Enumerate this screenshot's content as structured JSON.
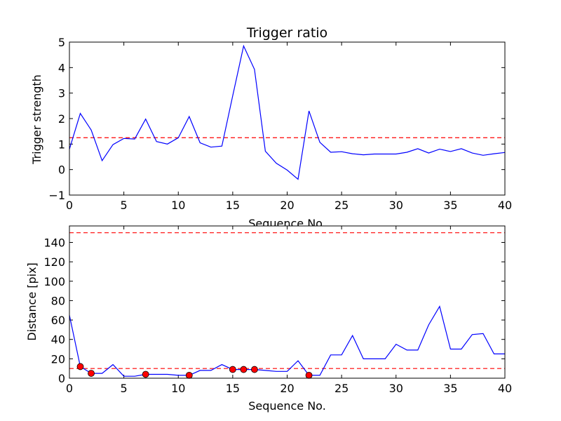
{
  "chart_data": [
    {
      "type": "line",
      "title": "Trigger ratio",
      "xlabel": "Sequence No.",
      "ylabel": "Trigger strength",
      "xlim": [
        0,
        40
      ],
      "ylim": [
        -1,
        5
      ],
      "xticks": [
        0,
        5,
        10,
        15,
        20,
        25,
        30,
        35,
        40
      ],
      "yticks": [
        -1,
        0,
        1,
        2,
        3,
        4,
        5
      ],
      "grid": false,
      "series": [
        {
          "color": "#0000ff",
          "x": [
            0,
            1,
            2,
            3,
            4,
            5,
            6,
            7,
            8,
            9,
            10,
            11,
            12,
            13,
            14,
            15,
            16,
            17,
            18,
            19,
            20,
            21,
            22,
            23,
            24,
            25,
            26,
            27,
            28,
            29,
            30,
            31,
            32,
            33,
            34,
            35,
            36,
            37,
            38,
            39,
            40
          ],
          "values": [
            0.8,
            2.2,
            1.55,
            0.35,
            0.98,
            1.22,
            1.2,
            1.98,
            1.1,
            1.0,
            1.25,
            2.08,
            1.05,
            0.88,
            0.92,
            2.9,
            4.85,
            3.93,
            0.72,
            0.25,
            -0.02,
            -0.38,
            2.3,
            1.07,
            0.68,
            0.7,
            0.62,
            0.58,
            0.61,
            0.61,
            0.61,
            0.68,
            0.82,
            0.65,
            0.8,
            0.71,
            0.82,
            0.65,
            0.56,
            0.62,
            0.67
          ]
        }
      ],
      "threshold_lines": [
        {
          "y": 1.25,
          "color": "#ff0000",
          "style": "dashed"
        }
      ]
    },
    {
      "type": "line",
      "title": "",
      "xlabel": "Sequence No.",
      "ylabel": "Distance [pix]",
      "xlim": [
        0,
        40
      ],
      "ylim": [
        0,
        157
      ],
      "xticks": [
        0,
        5,
        10,
        15,
        20,
        25,
        30,
        35,
        40
      ],
      "yticks": [
        0,
        20,
        40,
        60,
        80,
        100,
        120,
        140
      ],
      "grid": false,
      "series": [
        {
          "color": "#0000ff",
          "x": [
            0,
            1,
            2,
            3,
            4,
            5,
            6,
            7,
            8,
            9,
            10,
            11,
            12,
            13,
            14,
            15,
            16,
            17,
            18,
            19,
            20,
            21,
            22,
            23,
            24,
            25,
            26,
            27,
            28,
            29,
            30,
            31,
            32,
            33,
            34,
            35,
            36,
            37,
            38,
            39,
            40
          ],
          "values": [
            65,
            12,
            5,
            5,
            14,
            2,
            2,
            4,
            4,
            4,
            3,
            3,
            8,
            8,
            14,
            9,
            9,
            9,
            8,
            7,
            7,
            18,
            3,
            3,
            24,
            24,
            44,
            20,
            20,
            20,
            35,
            29,
            29,
            55,
            74,
            30,
            30,
            45,
            46,
            25,
            25
          ]
        }
      ],
      "markers": {
        "color": "#ff0000",
        "x": [
          1,
          2,
          7,
          11,
          15,
          16,
          17,
          22
        ],
        "values": [
          12,
          5,
          4,
          3,
          9,
          9,
          9,
          3
        ]
      },
      "threshold_lines": [
        {
          "y": 10,
          "color": "#ff0000",
          "style": "dashed"
        },
        {
          "y": 150,
          "color": "#ff0000",
          "style": "dashed"
        }
      ]
    }
  ]
}
